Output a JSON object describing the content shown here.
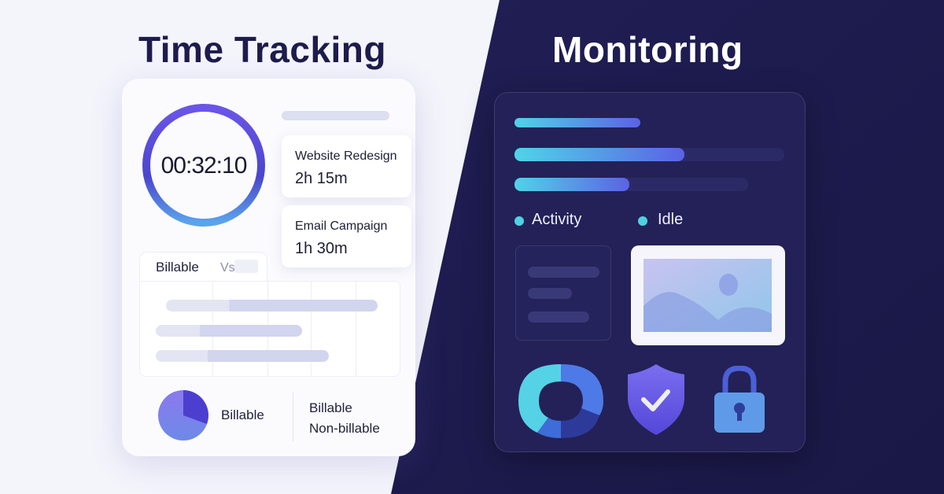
{
  "left": {
    "title": "Time Tracking",
    "timer": "00:32:10",
    "tasks": [
      {
        "name": "Website Redesign",
        "duration": "2h 15m"
      },
      {
        "name": "Email Campaign",
        "duration": "1h 30m"
      }
    ],
    "tabs": {
      "active": "Billable",
      "other": "Vs"
    },
    "pie_label": "Billable",
    "legend": [
      "Billable",
      "Non-billable"
    ]
  },
  "right": {
    "title": "Monitoring",
    "legend": [
      "Activity",
      "Idle"
    ],
    "icons": [
      "donut-chart-icon",
      "shield-check-icon",
      "padlock-icon",
      "image-icon"
    ]
  },
  "colors": {
    "dark_bg": "#1e1c50",
    "accent_cyan": "#4fd4e8",
    "accent_indigo": "#5b62e6",
    "title_dark": "#1d1c4c"
  }
}
